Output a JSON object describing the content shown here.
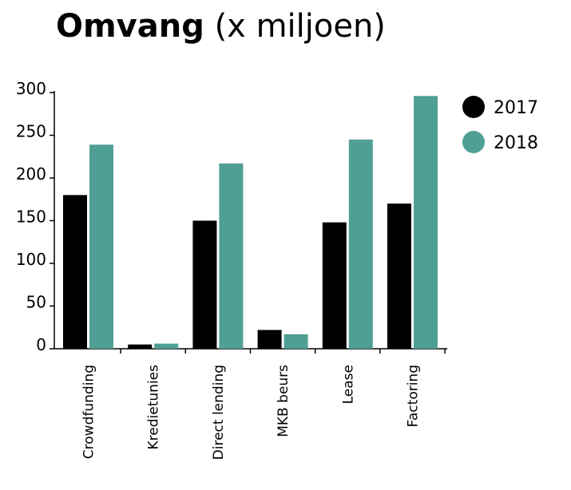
{
  "title_bold": "Omvang",
  "title_rest": "(x miljoen)",
  "chart_data": {
    "type": "bar",
    "title": "Omvang (x miljoen)",
    "categories": [
      "Crowdfunding",
      "Kredietunies",
      "Direct lending",
      "MKB beurs",
      "Lease",
      "Factoring"
    ],
    "series": [
      {
        "name": "2017",
        "color": "#000000",
        "values": [
          180,
          5,
          150,
          22,
          148,
          170
        ]
      },
      {
        "name": "2018",
        "color": "#4f9f94",
        "values": [
          239,
          6,
          217,
          17,
          245,
          296
        ]
      }
    ],
    "yticks": [
      0,
      50,
      100,
      150,
      200,
      250,
      300
    ],
    "ylim": [
      0,
      300
    ],
    "grid": false,
    "legend": "top-right"
  }
}
